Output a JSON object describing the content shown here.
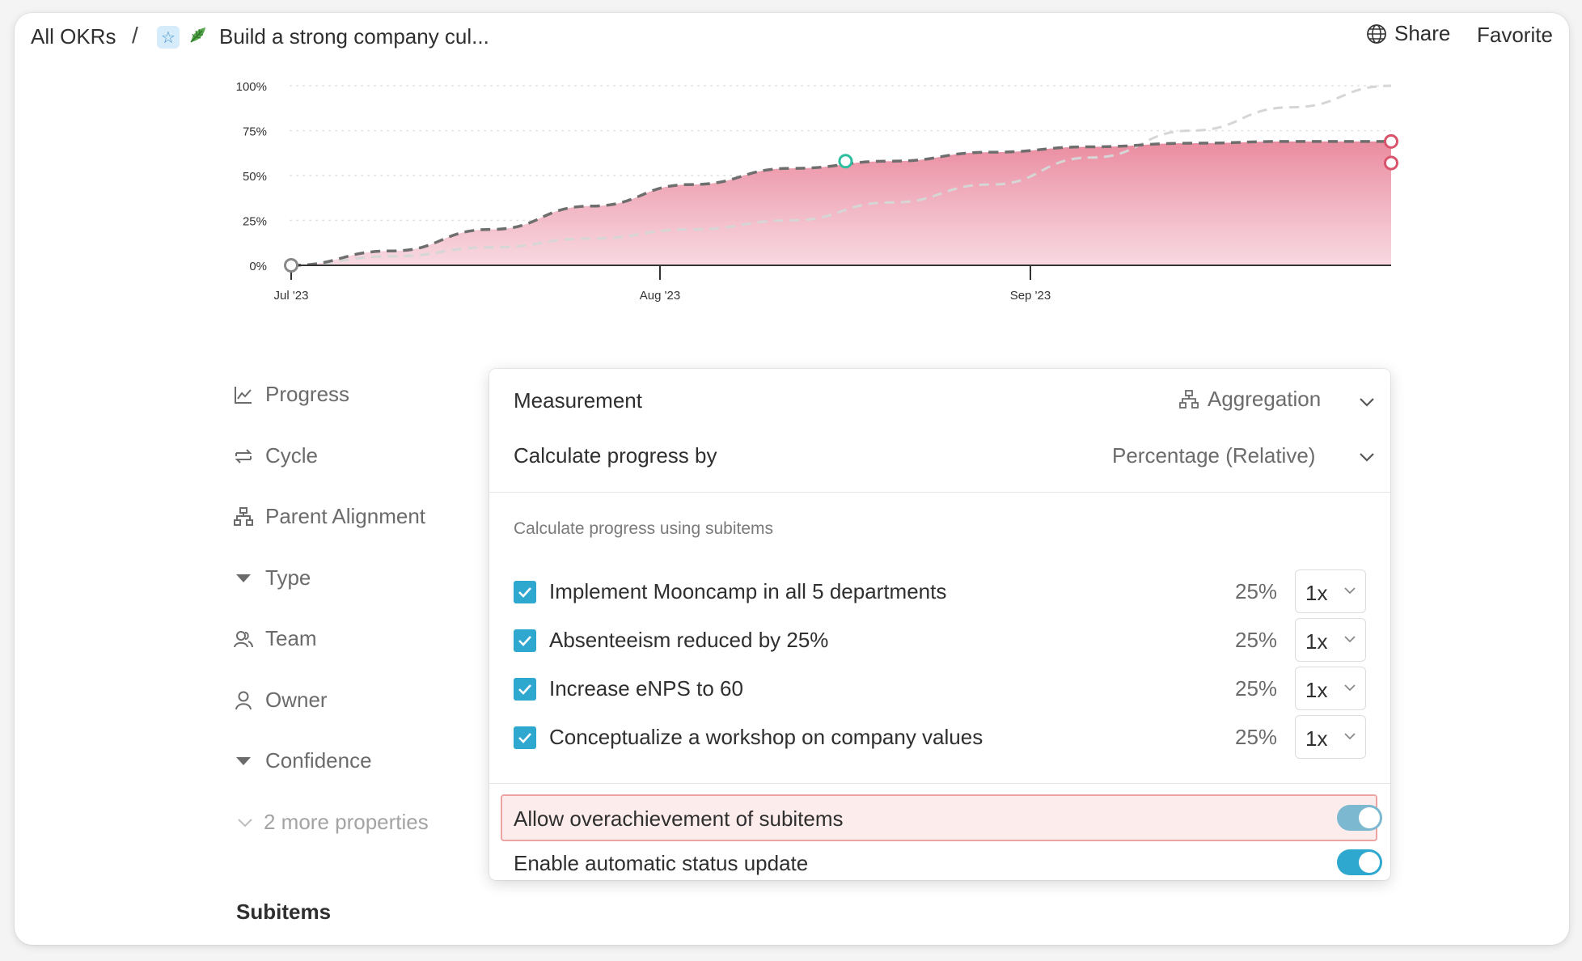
{
  "header": {
    "root_label": "All OKRs",
    "separator": "/",
    "title": "Build a strong company cul...",
    "share_label": "Share",
    "favorite_label": "Favorite"
  },
  "chart_data": {
    "type": "area",
    "y_ticks": [
      "100%",
      "75%",
      "50%",
      "25%",
      "0%"
    ],
    "x_ticks": [
      "Jul '23",
      "Aug '23",
      "Sep '23"
    ],
    "ylim": [
      0,
      100
    ],
    "series": [
      {
        "values": [
          0,
          8,
          20,
          33,
          45,
          54,
          58,
          63,
          66,
          68,
          69,
          69
        ]
      },
      {
        "values": [
          0,
          5,
          10,
          15,
          20,
          25,
          35,
          45,
          60,
          75,
          88,
          100
        ]
      }
    ],
    "markers": [
      {
        "x_frac": 0.0,
        "value": 0,
        "color": "#888888"
      },
      {
        "x_frac": 0.504,
        "value": 58,
        "color": "#2fbfa0"
      },
      {
        "x_frac": 1.0,
        "value": 69,
        "color": "#d9536a"
      },
      {
        "x_frac": 1.0,
        "value": 57,
        "color": "#d9536a"
      }
    ],
    "fill_color": "#eb8fa3"
  },
  "properties": [
    {
      "label": "Progress",
      "icon": "line-chart-icon"
    },
    {
      "label": "Cycle",
      "icon": "cycle-icon"
    },
    {
      "label": "Parent Alignment",
      "icon": "hierarchy-icon"
    },
    {
      "label": "Type",
      "icon": "caret-down-icon"
    },
    {
      "label": "Team",
      "icon": "team-icon"
    },
    {
      "label": "Owner",
      "icon": "user-icon"
    },
    {
      "label": "Confidence",
      "icon": "caret-down-icon"
    }
  ],
  "more_properties": "2 more properties",
  "subitems_heading": "Subitems",
  "popup": {
    "measurement_label": "Measurement",
    "measurement_value": "Aggregation",
    "calc_label": "Calculate progress by",
    "calc_value": "Percentage (Relative)",
    "section_title": "Calculate progress using subitems",
    "subitems": [
      {
        "label": "Implement Mooncamp in all 5 departments",
        "pct": "25%",
        "weight": "1x",
        "checked": true
      },
      {
        "label": "Absenteeism reduced by 25%",
        "pct": "25%",
        "weight": "1x",
        "checked": true
      },
      {
        "label": "Increase eNPS to 60",
        "pct": "25%",
        "weight": "1x",
        "checked": true
      },
      {
        "label": "Conceptualize a workshop on company values",
        "pct": "25%",
        "weight": "1x",
        "checked": true
      }
    ],
    "overachievement_label": "Allow overachievement of subitems",
    "overachievement_on": true,
    "auto_status_label": "Enable automatic status update",
    "auto_status_on": true,
    "accent_color": "#2fa8cf",
    "highlight_toggle_color": "#7cb8d0"
  }
}
